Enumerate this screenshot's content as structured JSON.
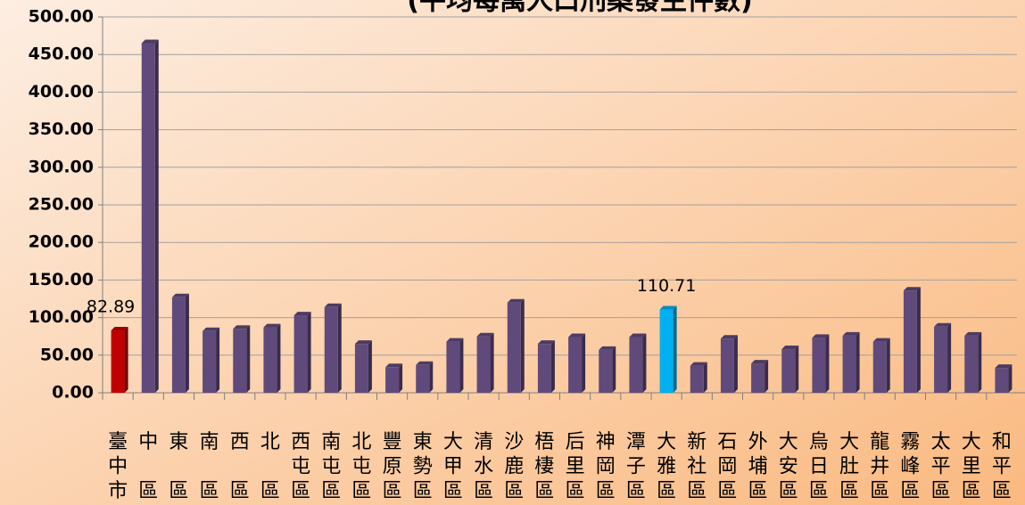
{
  "chart_data": {
    "type": "bar",
    "title": "(平均每萬人口刑案發生件數)",
    "categories": [
      "臺中市",
      "中區",
      "東區",
      "南區",
      "西區",
      "北區",
      "西屯區",
      "南屯區",
      "北屯區",
      "豐原區",
      "東勢區",
      "大甲區",
      "清水區",
      "沙鹿區",
      "梧棲區",
      "后里區",
      "神岡區",
      "潭子區",
      "大雅區",
      "新社區",
      "石岡區",
      "外埔區",
      "大安區",
      "烏日區",
      "大肚區",
      "龍井區",
      "霧峰區",
      "太平區",
      "大里區",
      "和平區"
    ],
    "values": [
      82.89,
      465,
      127,
      82,
      85,
      87,
      103,
      114,
      65,
      34,
      37,
      68,
      75,
      120,
      65,
      74,
      57,
      74,
      110.71,
      36,
      72,
      39,
      58,
      73,
      76,
      68,
      136,
      88,
      76,
      33
    ],
    "value_labels": [
      "82.89",
      null,
      null,
      null,
      null,
      null,
      null,
      null,
      null,
      null,
      null,
      null,
      null,
      null,
      null,
      null,
      null,
      null,
      "110.71",
      null,
      null,
      null,
      null,
      null,
      null,
      null,
      null,
      null,
      null,
      null
    ],
    "colors": [
      "#c00000",
      "#604a7b",
      "#604a7b",
      "#604a7b",
      "#604a7b",
      "#604a7b",
      "#604a7b",
      "#604a7b",
      "#604a7b",
      "#604a7b",
      "#604a7b",
      "#604a7b",
      "#604a7b",
      "#604a7b",
      "#604a7b",
      "#604a7b",
      "#604a7b",
      "#604a7b",
      "#00b0f0",
      "#604a7b",
      "#604a7b",
      "#604a7b",
      "#604a7b",
      "#604a7b",
      "#604a7b",
      "#604a7b",
      "#604a7b",
      "#604a7b",
      "#604a7b",
      "#604a7b"
    ],
    "ylim": [
      0,
      500
    ],
    "yticks": [
      {
        "value": 0,
        "label": "0.00"
      },
      {
        "value": 50,
        "label": "50.00"
      },
      {
        "value": 100,
        "label": "100.00"
      },
      {
        "value": 150,
        "label": "150.00"
      },
      {
        "value": 200,
        "label": "200.00"
      },
      {
        "value": 250,
        "label": "250.00"
      },
      {
        "value": 300,
        "label": "300.00"
      },
      {
        "value": 350,
        "label": "350.00"
      },
      {
        "value": 400,
        "label": "400.00"
      },
      {
        "value": 450,
        "label": "450.00"
      },
      {
        "value": 500,
        "label": "500.00"
      }
    ],
    "grid": true
  }
}
